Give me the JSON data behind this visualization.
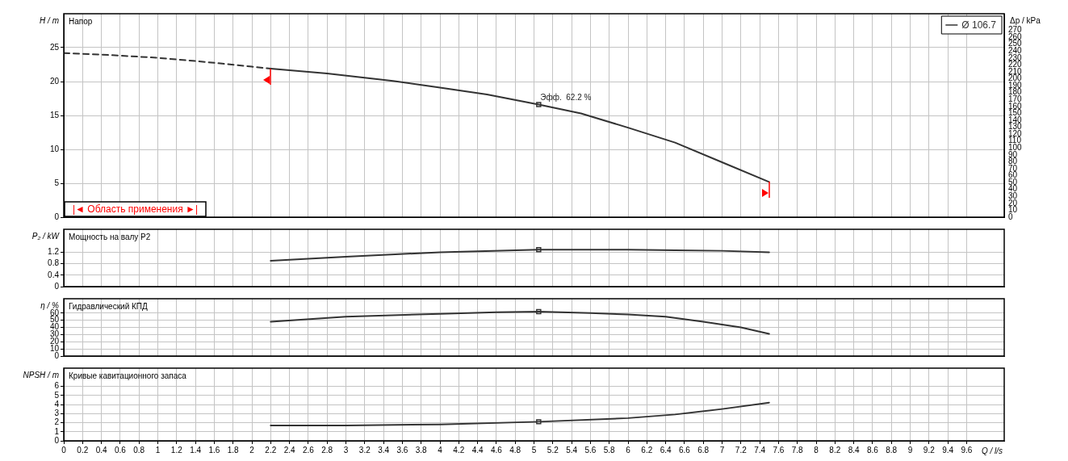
{
  "chart_data": [
    {
      "type": "line",
      "title": "Напор",
      "ylabel": "H / m",
      "y2label": "Δp / kPa",
      "xlim": [
        0,
        10
      ],
      "xticks": [
        0,
        0.2,
        0.4,
        0.6,
        0.8,
        1,
        1.2,
        1.4,
        1.6,
        1.8,
        2,
        2.2,
        2.4,
        2.6,
        2.8,
        3,
        3.2,
        3.4,
        3.6,
        3.8,
        4,
        4.2,
        4.4,
        4.6,
        4.8,
        5,
        5.2,
        5.4,
        5.6,
        5.8,
        6,
        6.2,
        6.4,
        6.6,
        6.8,
        7,
        7.2,
        7.4,
        7.6,
        7.8,
        8,
        8.2,
        8.4,
        8.6,
        8.8,
        9,
        9.2,
        9.4,
        9.6
      ],
      "ylim": [
        0,
        30
      ],
      "yticks": [
        0,
        5,
        10,
        15,
        20,
        25
      ],
      "y2lim": [
        0,
        294
      ],
      "y2ticks": [
        0,
        10,
        20,
        30,
        40,
        50,
        60,
        70,
        80,
        90,
        100,
        110,
        120,
        130,
        140,
        150,
        160,
        170,
        180,
        190,
        200,
        210,
        220,
        230,
        240,
        250,
        260,
        270
      ],
      "tick_labels": "y",
      "grid": true,
      "legend": "top right",
      "annotations": [
        {
          "text": "Эфф.  62.2 %",
          "x": 5.05,
          "y": 16.6
        },
        "|◄ Область применения ►|"
      ],
      "series": [
        {
          "type": "line",
          "color": "#333333",
          "line_style": "dashed",
          "x": [
            0,
            0.5,
            1,
            1.5,
            2,
            2.2
          ],
          "values": [
            24.2,
            23.9,
            23.5,
            22.9,
            22.2,
            21.9
          ]
        },
        {
          "type": "line",
          "name": "Ø 106.7",
          "color": "#333333",
          "line_style": "solid",
          "x": [
            2.2,
            2.8,
            3.5,
            4,
            4.5,
            5.05,
            5.5,
            6,
            6.5,
            7,
            7.5
          ],
          "values": [
            21.9,
            21.2,
            20.1,
            19.1,
            18.1,
            16.6,
            15.3,
            13.2,
            11.0,
            8.1,
            5.2
          ]
        },
        {
          "type": "scatter",
          "color": "#333333",
          "marker": "square",
          "x": [
            5.05
          ],
          "values": [
            16.6
          ]
        }
      ]
    },
    {
      "type": "line",
      "title": "Мощность на валу P2",
      "ylabel": "P₂ / kW",
      "xlim": [
        0,
        10
      ],
      "xticks": [
        0,
        0.2,
        0.4,
        0.6,
        0.8,
        1,
        1.2,
        1.4,
        1.6,
        1.8,
        2,
        2.2,
        2.4,
        2.6,
        2.8,
        3,
        3.2,
        3.4,
        3.6,
        3.8,
        4,
        4.2,
        4.4,
        4.6,
        4.8,
        5,
        5.2,
        5.4,
        5.6,
        5.8,
        6,
        6.2,
        6.4,
        6.6,
        6.8,
        7,
        7.2,
        7.4,
        7.6,
        7.8,
        8,
        8.2,
        8.4,
        8.6,
        8.8,
        9,
        9.2,
        9.4,
        9.6
      ],
      "ylim": [
        0,
        2
      ],
      "yticks": [
        0,
        0.4,
        0.8,
        1.2
      ],
      "tick_labels": "y",
      "grid": true,
      "series": [
        {
          "type": "line",
          "color": "#333333",
          "line_style": "solid",
          "x": [
            2.2,
            3,
            4,
            5.05,
            6,
            6.5,
            7,
            7.5
          ],
          "values": [
            0.9,
            1.04,
            1.2,
            1.29,
            1.29,
            1.27,
            1.25,
            1.2
          ]
        },
        {
          "type": "scatter",
          "color": "#333333",
          "marker": "square",
          "x": [
            5.05
          ],
          "values": [
            1.29
          ]
        }
      ]
    },
    {
      "type": "line",
      "title": "Гидравлический КПД",
      "ylabel": "η / %",
      "xlim": [
        0,
        10
      ],
      "xticks": [
        0,
        0.2,
        0.4,
        0.6,
        0.8,
        1,
        1.2,
        1.4,
        1.6,
        1.8,
        2,
        2.2,
        2.4,
        2.6,
        2.8,
        3,
        3.2,
        3.4,
        3.6,
        3.8,
        4,
        4.2,
        4.4,
        4.6,
        4.8,
        5,
        5.2,
        5.4,
        5.6,
        5.8,
        6,
        6.2,
        6.4,
        6.6,
        6.8,
        7,
        7.2,
        7.4,
        7.6,
        7.8,
        8,
        8.2,
        8.4,
        8.6,
        8.8,
        9,
        9.2,
        9.4,
        9.6
      ],
      "ylim": [
        0,
        80
      ],
      "yticks": [
        0,
        10,
        20,
        30,
        40,
        50,
        60
      ],
      "tick_labels": "y",
      "grid": true,
      "series": [
        {
          "type": "line",
          "color": "#333333",
          "line_style": "solid",
          "x": [
            2.2,
            3,
            4,
            4.6,
            5.05,
            5.6,
            6,
            6.4,
            6.8,
            7.2,
            7.5
          ],
          "values": [
            48,
            55,
            59,
            61,
            62,
            60,
            58,
            55,
            48,
            40,
            31
          ]
        },
        {
          "type": "scatter",
          "color": "#333333",
          "marker": "square",
          "x": [
            5.05
          ],
          "values": [
            62
          ]
        }
      ]
    },
    {
      "type": "line",
      "title": "Кривые кавитационного запаса",
      "ylabel": "NPSH / m",
      "xlabel": "Q / l/s",
      "xlim": [
        0,
        10
      ],
      "xticks": [
        0,
        0.2,
        0.4,
        0.6,
        0.8,
        1,
        1.2,
        1.4,
        1.6,
        1.8,
        2,
        2.2,
        2.4,
        2.6,
        2.8,
        3,
        3.2,
        3.4,
        3.6,
        3.8,
        4,
        4.2,
        4.4,
        4.6,
        4.8,
        5,
        5.2,
        5.4,
        5.6,
        5.8,
        6,
        6.2,
        6.4,
        6.6,
        6.8,
        7,
        7.2,
        7.4,
        7.6,
        7.8,
        8,
        8.2,
        8.4,
        8.6,
        8.8,
        9,
        9.2,
        9.4,
        9.6
      ],
      "ylim": [
        0,
        8
      ],
      "yticks": [
        0,
        1,
        2,
        3,
        4,
        5,
        6
      ],
      "grid": true,
      "series": [
        {
          "type": "line",
          "color": "#333333",
          "line_style": "solid",
          "x": [
            2.2,
            3,
            4,
            5.05,
            6,
            6.5,
            7,
            7.5
          ],
          "values": [
            1.7,
            1.7,
            1.8,
            2.1,
            2.5,
            2.9,
            3.5,
            4.2
          ]
        },
        {
          "type": "scatter",
          "color": "#333333",
          "marker": "square",
          "x": [
            5.05
          ],
          "values": [
            2.1
          ]
        }
      ]
    }
  ]
}
